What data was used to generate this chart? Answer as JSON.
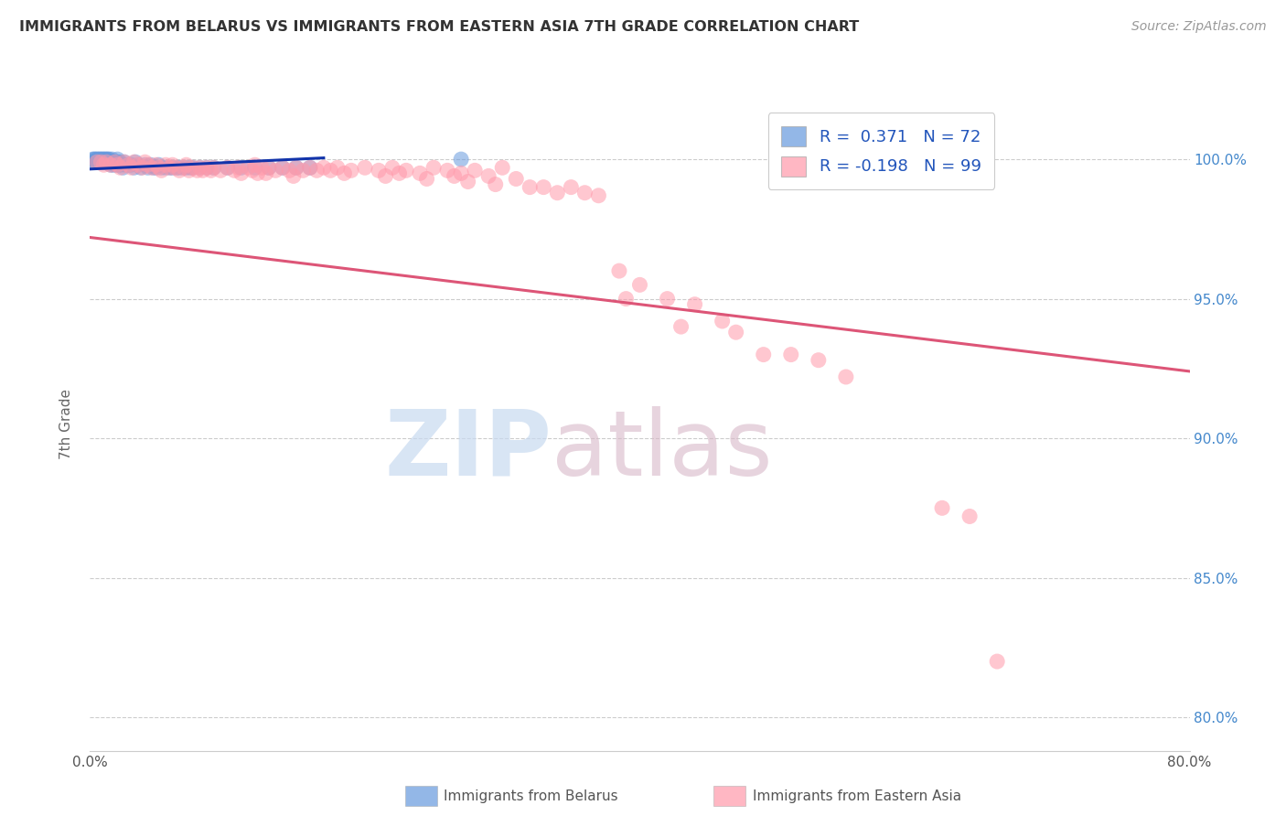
{
  "title": "IMMIGRANTS FROM BELARUS VS IMMIGRANTS FROM EASTERN ASIA 7TH GRADE CORRELATION CHART",
  "source": "Source: ZipAtlas.com",
  "ylabel": "7th Grade",
  "legend_label_blue": "Immigrants from Belarus",
  "legend_label_pink": "Immigrants from Eastern Asia",
  "R_blue": 0.371,
  "N_blue": 72,
  "R_pink": -0.198,
  "N_pink": 99,
  "xmin": 0.0,
  "xmax": 0.8,
  "ymin": 0.788,
  "ymax": 1.022,
  "yticks": [
    0.8,
    0.85,
    0.9,
    0.95,
    1.0
  ],
  "ytick_labels": [
    "80.0%",
    "85.0%",
    "90.0%",
    "95.0%",
    "100.0%"
  ],
  "xticks": [
    0.0,
    0.1,
    0.2,
    0.3,
    0.4,
    0.5,
    0.6,
    0.7,
    0.8
  ],
  "blue_color": "#6699dd",
  "pink_color": "#ff99aa",
  "blue_line_color": "#1133aa",
  "pink_line_color": "#dd5577",
  "watermark_zip": "ZIP",
  "watermark_atlas": "atlas",
  "watermark_color_zip": "#c8daf0",
  "watermark_color_atlas": "#d8b8c8",
  "blue_scatter_x": [
    0.002,
    0.003,
    0.003,
    0.004,
    0.004,
    0.005,
    0.005,
    0.006,
    0.006,
    0.007,
    0.007,
    0.008,
    0.008,
    0.009,
    0.009,
    0.01,
    0.01,
    0.011,
    0.011,
    0.012,
    0.012,
    0.013,
    0.013,
    0.014,
    0.015,
    0.015,
    0.016,
    0.016,
    0.017,
    0.018,
    0.019,
    0.02,
    0.02,
    0.021,
    0.022,
    0.023,
    0.024,
    0.025,
    0.026,
    0.028,
    0.03,
    0.032,
    0.033,
    0.035,
    0.037,
    0.04,
    0.042,
    0.044,
    0.046,
    0.048,
    0.05,
    0.052,
    0.055,
    0.058,
    0.06,
    0.063,
    0.065,
    0.068,
    0.07,
    0.073,
    0.075,
    0.08,
    0.085,
    0.09,
    0.1,
    0.11,
    0.12,
    0.13,
    0.14,
    0.15,
    0.16,
    0.27
  ],
  "blue_scatter_y": [
    1.0,
    1.0,
    0.999,
    1.0,
    0.999,
    1.0,
    0.999,
    1.0,
    0.999,
    1.0,
    0.999,
    1.0,
    0.999,
    1.0,
    0.999,
    1.0,
    0.999,
    1.0,
    0.999,
    1.0,
    0.999,
    1.0,
    0.999,
    1.0,
    0.999,
    0.998,
    1.0,
    0.999,
    0.998,
    0.999,
    0.998,
    1.0,
    0.999,
    0.998,
    0.999,
    0.998,
    0.997,
    0.999,
    0.998,
    0.998,
    0.998,
    0.997,
    0.999,
    0.998,
    0.997,
    0.998,
    0.997,
    0.998,
    0.997,
    0.997,
    0.998,
    0.997,
    0.997,
    0.997,
    0.997,
    0.997,
    0.997,
    0.997,
    0.997,
    0.997,
    0.997,
    0.997,
    0.997,
    0.997,
    0.997,
    0.997,
    0.997,
    0.997,
    0.997,
    0.997,
    0.997,
    1.0
  ],
  "pink_scatter_x": [
    0.005,
    0.008,
    0.01,
    0.012,
    0.015,
    0.018,
    0.02,
    0.022,
    0.025,
    0.028,
    0.03,
    0.032,
    0.035,
    0.038,
    0.04,
    0.042,
    0.045,
    0.048,
    0.05,
    0.052,
    0.055,
    0.058,
    0.06,
    0.062,
    0.065,
    0.068,
    0.07,
    0.072,
    0.075,
    0.078,
    0.08,
    0.082,
    0.085,
    0.088,
    0.09,
    0.095,
    0.1,
    0.105,
    0.108,
    0.11,
    0.115,
    0.118,
    0.12,
    0.122,
    0.125,
    0.128,
    0.13,
    0.135,
    0.14,
    0.145,
    0.148,
    0.15,
    0.155,
    0.16,
    0.165,
    0.17,
    0.175,
    0.18,
    0.185,
    0.19,
    0.2,
    0.21,
    0.215,
    0.22,
    0.225,
    0.23,
    0.24,
    0.245,
    0.25,
    0.26,
    0.265,
    0.27,
    0.275,
    0.28,
    0.29,
    0.295,
    0.3,
    0.31,
    0.32,
    0.33,
    0.34,
    0.35,
    0.36,
    0.37,
    0.385,
    0.39,
    0.4,
    0.42,
    0.43,
    0.44,
    0.46,
    0.47,
    0.49,
    0.51,
    0.53,
    0.55,
    0.62,
    0.64,
    0.66
  ],
  "pink_scatter_y": [
    0.999,
    0.999,
    0.998,
    0.999,
    0.998,
    0.999,
    0.998,
    0.997,
    0.999,
    0.998,
    0.997,
    0.999,
    0.998,
    0.997,
    0.999,
    0.998,
    0.997,
    0.998,
    0.997,
    0.996,
    0.998,
    0.997,
    0.998,
    0.997,
    0.996,
    0.997,
    0.998,
    0.996,
    0.997,
    0.996,
    0.997,
    0.996,
    0.997,
    0.996,
    0.997,
    0.996,
    0.997,
    0.996,
    0.997,
    0.995,
    0.997,
    0.996,
    0.998,
    0.995,
    0.997,
    0.995,
    0.997,
    0.996,
    0.997,
    0.996,
    0.994,
    0.997,
    0.996,
    0.997,
    0.996,
    0.997,
    0.996,
    0.997,
    0.995,
    0.996,
    0.997,
    0.996,
    0.994,
    0.997,
    0.995,
    0.996,
    0.995,
    0.993,
    0.997,
    0.996,
    0.994,
    0.995,
    0.992,
    0.996,
    0.994,
    0.991,
    0.997,
    0.993,
    0.99,
    0.99,
    0.988,
    0.99,
    0.988,
    0.987,
    0.96,
    0.95,
    0.955,
    0.95,
    0.94,
    0.948,
    0.942,
    0.938,
    0.93,
    0.93,
    0.928,
    0.922,
    0.875,
    0.872,
    0.82
  ],
  "blue_trend_x0": 0.0,
  "blue_trend_x1": 0.17,
  "blue_trend_y0": 0.9965,
  "blue_trend_y1": 1.0005,
  "pink_trend_x0": 0.0,
  "pink_trend_x1": 0.8,
  "pink_trend_y0": 0.972,
  "pink_trend_y1": 0.924
}
